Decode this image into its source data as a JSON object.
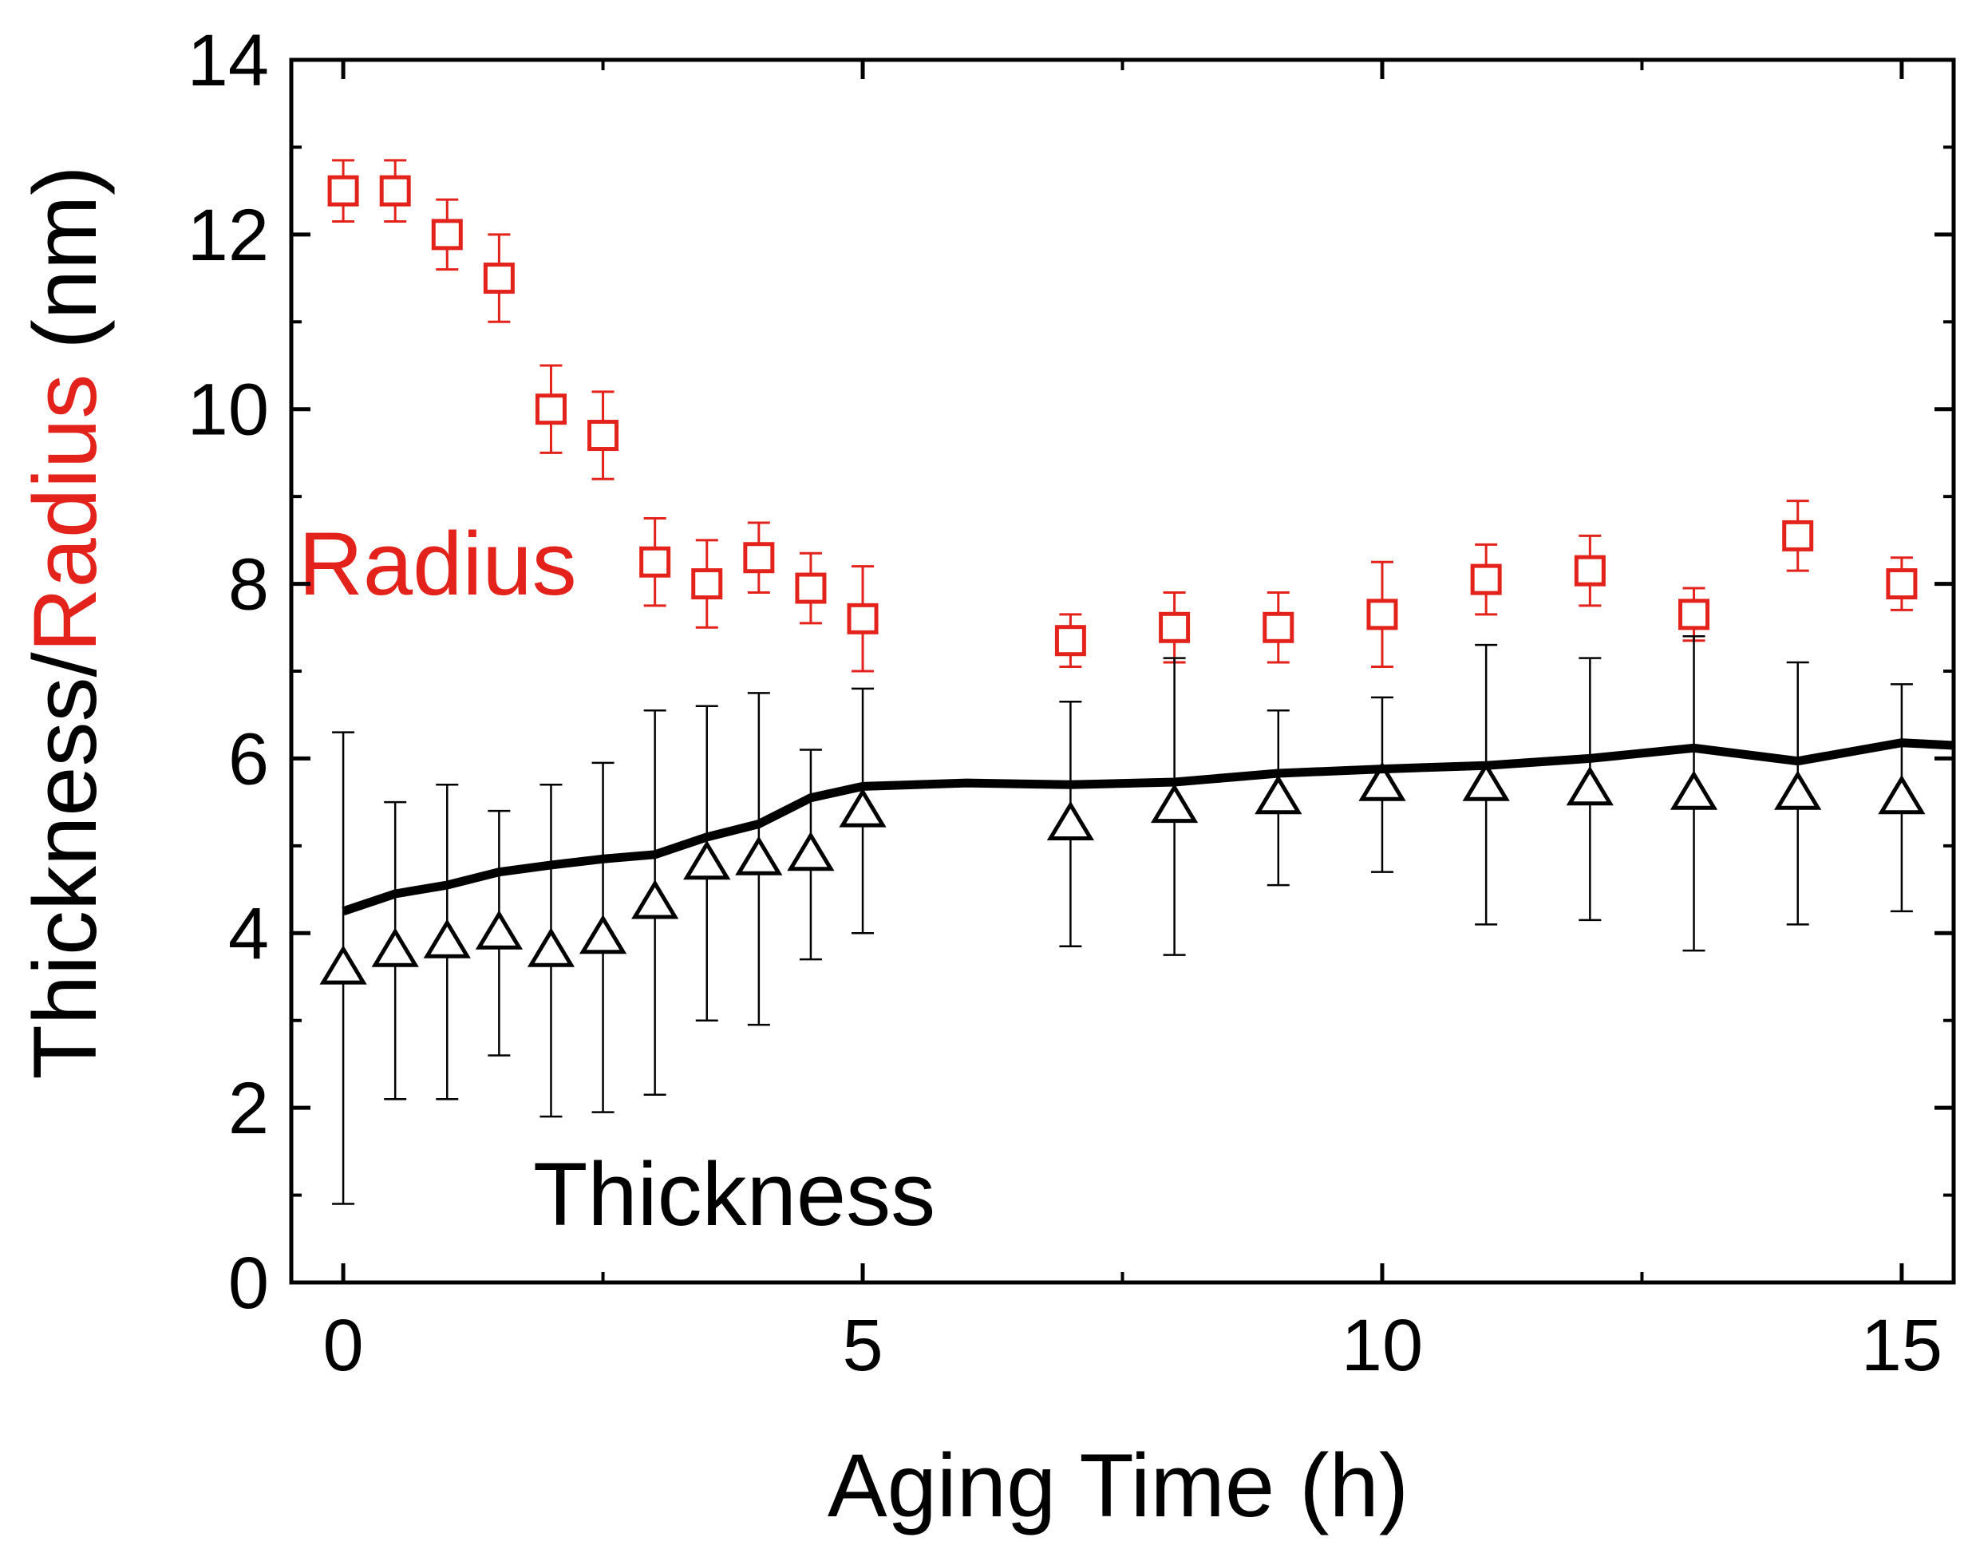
{
  "chart_data": {
    "type": "scatter",
    "title": "",
    "xlabel": "Aging Time (h)",
    "ylabel": {
      "part1": "Thickness/",
      "part2": "Radius",
      "part3": " (nm)"
    },
    "xlim": [
      -0.5,
      15.5
    ],
    "ylim": [
      0,
      14
    ],
    "x_ticks": [
      0,
      5,
      10,
      15
    ],
    "x_tick_labels": [
      "0",
      "5",
      "10",
      "15"
    ],
    "x_minor_ticks": [
      2.5,
      7.5,
      12.5
    ],
    "y_ticks": [
      0,
      2,
      4,
      6,
      8,
      10,
      12,
      14
    ],
    "y_tick_labels": [
      "0",
      "2",
      "4",
      "6",
      "8",
      "10",
      "12",
      "14"
    ],
    "y_minor_ticks": [
      1,
      3,
      5,
      7,
      9,
      11,
      13
    ],
    "grid": false,
    "colors": {
      "radius": "#e3231b",
      "thickness": "#000000",
      "axes": "#000000"
    },
    "annotations": {
      "radius_label": "Radius",
      "thickness_label": "Thickness"
    },
    "series": [
      {
        "name": "Radius",
        "marker": "open-square",
        "color": "#e3231b",
        "x": [
          0,
          0.5,
          1,
          1.5,
          2,
          2.5,
          3,
          3.5,
          4,
          4.5,
          5,
          7,
          8,
          9,
          10,
          11,
          12,
          13,
          14,
          15
        ],
        "y": [
          12.5,
          12.5,
          12.0,
          11.5,
          10.0,
          9.7,
          8.25,
          8.0,
          8.3,
          7.95,
          7.6,
          7.35,
          7.5,
          7.5,
          7.65,
          8.05,
          8.15,
          7.65,
          8.55,
          8.0
        ],
        "err": [
          0.35,
          0.35,
          0.4,
          0.5,
          0.5,
          0.5,
          0.5,
          0.5,
          0.4,
          0.4,
          0.6,
          0.3,
          0.4,
          0.4,
          0.6,
          0.4,
          0.4,
          0.3,
          0.4,
          0.3
        ]
      },
      {
        "name": "Thickness",
        "marker": "open-triangle",
        "color": "#000000",
        "x": [
          0,
          0.5,
          1,
          1.5,
          2,
          2.5,
          3,
          3.5,
          4,
          4.5,
          5,
          7,
          8,
          9,
          10,
          11,
          12,
          13,
          14,
          15
        ],
        "y": [
          3.6,
          3.8,
          3.9,
          4.0,
          3.8,
          3.95,
          4.35,
          4.8,
          4.85,
          4.9,
          5.4,
          5.25,
          5.45,
          5.55,
          5.7,
          5.7,
          5.65,
          5.6,
          5.6,
          5.55
        ],
        "err": [
          2.7,
          1.7,
          1.8,
          1.4,
          1.9,
          2.0,
          2.2,
          1.8,
          1.9,
          1.2,
          1.4,
          1.4,
          1.7,
          1.0,
          1.0,
          1.6,
          1.5,
          1.8,
          1.5,
          1.3
        ]
      },
      {
        "name": "Thickness (line)",
        "marker": "none",
        "style": "solid-line",
        "color": "#000000",
        "x": [
          0,
          0.5,
          1,
          1.5,
          2,
          2.5,
          3,
          3.5,
          4,
          4.5,
          5,
          6,
          7,
          8,
          9,
          10,
          11,
          12,
          13,
          14,
          15,
          15.5
        ],
        "y": [
          4.25,
          4.45,
          4.55,
          4.7,
          4.78,
          4.85,
          4.9,
          5.1,
          5.25,
          5.55,
          5.68,
          5.72,
          5.7,
          5.73,
          5.83,
          5.88,
          5.92,
          6.0,
          6.12,
          5.97,
          6.18,
          6.15
        ]
      }
    ]
  }
}
